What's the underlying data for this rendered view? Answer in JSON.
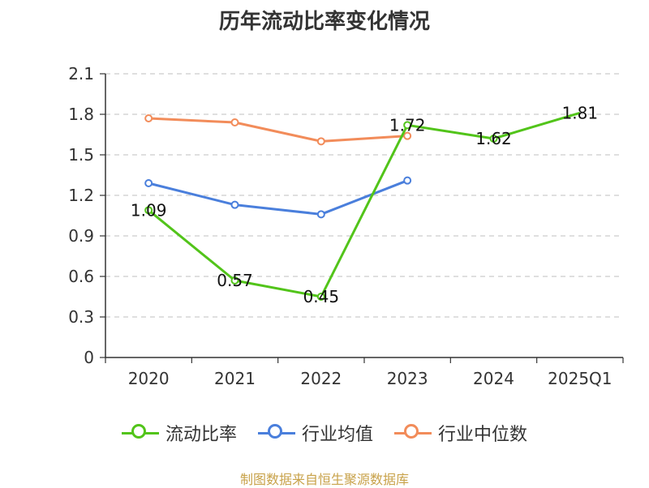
{
  "chart_data": {
    "type": "line",
    "title": "历年流动比率变化情况",
    "categories": [
      "2020",
      "2021",
      "2022",
      "2023",
      "2024",
      "2025Q1"
    ],
    "ylim": [
      0,
      2.1
    ],
    "yticks": [
      "0",
      "0.3",
      "0.6",
      "0.9",
      "1.2",
      "1.5",
      "1.8",
      "2.1"
    ],
    "grid": true,
    "legend_position": "bottom",
    "series": [
      {
        "name": "流动比率",
        "color": "#52c41a",
        "values": [
          1.09,
          0.57,
          0.45,
          1.72,
          1.62,
          1.81
        ],
        "labels": [
          "1.09",
          "0.57",
          "0.45",
          "1.72",
          "1.62",
          "1.81"
        ]
      },
      {
        "name": "行业均值",
        "color": "#4a7fdc",
        "values": [
          1.29,
          1.13,
          1.06,
          1.31,
          null,
          null
        ]
      },
      {
        "name": "行业中位数",
        "color": "#f28c5a",
        "values": [
          1.77,
          1.74,
          1.6,
          1.64,
          null,
          null
        ]
      }
    ]
  },
  "source": "制图数据来自恒生聚源数据库"
}
